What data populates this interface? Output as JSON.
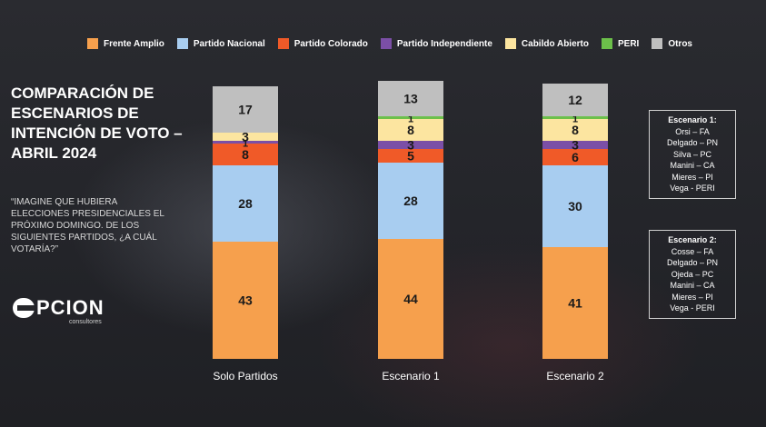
{
  "legend": [
    {
      "label": "Frente Amplio",
      "color": "#f6a04d"
    },
    {
      "label": "Partido Nacional",
      "color": "#a8cdf0"
    },
    {
      "label": "Partido Colorado",
      "color": "#f05a28"
    },
    {
      "label": "Partido Independiente",
      "color": "#7b4fa6"
    },
    {
      "label": "Cabildo Abierto",
      "color": "#fce5a0"
    },
    {
      "label": "PERI",
      "color": "#6cc04a"
    },
    {
      "label": "Otros",
      "color": "#bfbfbf"
    }
  ],
  "title": "COMPARACIÓN DE ESCENARIOS DE INTENCIÓN DE VOTO – ABRIL 2024",
  "subtitle": "“IMAGINE QUE HUBIERA ELECCIONES PRESIDENCIALES EL PRÓXIMO DOMINGO. DE LOS SIGUIENTES PARTIDOS, ¿A CUÁL VOTARÍA?”",
  "logo": {
    "main": "PCION",
    "sub": "consultores"
  },
  "scenario1": {
    "title": "Escenario 1:",
    "lines": [
      "Orsi – FA",
      "Delgado – PN",
      "Silva – PC",
      "Manini – CA",
      "Mieres – PI",
      "Vega - PERI"
    ]
  },
  "scenario2": {
    "title": "Escenario 2:",
    "lines": [
      "Cosse – FA",
      "Delgado – PN",
      "Ojeda – PC",
      "Manini – CA",
      "Mieres – PI",
      "Vega - PERI"
    ]
  },
  "chart_data": {
    "type": "bar",
    "stacked": true,
    "categories": [
      "Solo Partidos",
      "Escenario 1",
      "Escenario 2"
    ],
    "series": [
      {
        "name": "Frente Amplio",
        "color": "#f6a04d",
        "values": [
          43,
          44,
          41
        ]
      },
      {
        "name": "Partido Nacional",
        "color": "#a8cdf0",
        "values": [
          28,
          28,
          30
        ]
      },
      {
        "name": "Partido Colorado",
        "color": "#f05a28",
        "values": [
          8,
          5,
          6
        ]
      },
      {
        "name": "Partido Independiente",
        "color": "#7b4fa6",
        "values": [
          1,
          3,
          3
        ]
      },
      {
        "name": "Cabildo Abierto",
        "color": "#fce5a0",
        "values": [
          3,
          8,
          8
        ]
      },
      {
        "name": "PERI",
        "color": "#6cc04a",
        "values": [
          0,
          1,
          1
        ]
      },
      {
        "name": "Otros",
        "color": "#bfbfbf",
        "values": [
          17,
          13,
          12
        ]
      }
    ],
    "data_labels": [
      [
        43,
        44,
        41
      ],
      [
        28,
        28,
        30
      ],
      [
        8,
        5,
        6
      ],
      [
        1,
        3,
        3
      ],
      [
        3,
        8,
        8
      ],
      [
        null,
        1,
        1
      ],
      [
        17,
        13,
        12
      ]
    ],
    "ylim": [
      0,
      100
    ],
    "legend": "top",
    "grid": false
  }
}
